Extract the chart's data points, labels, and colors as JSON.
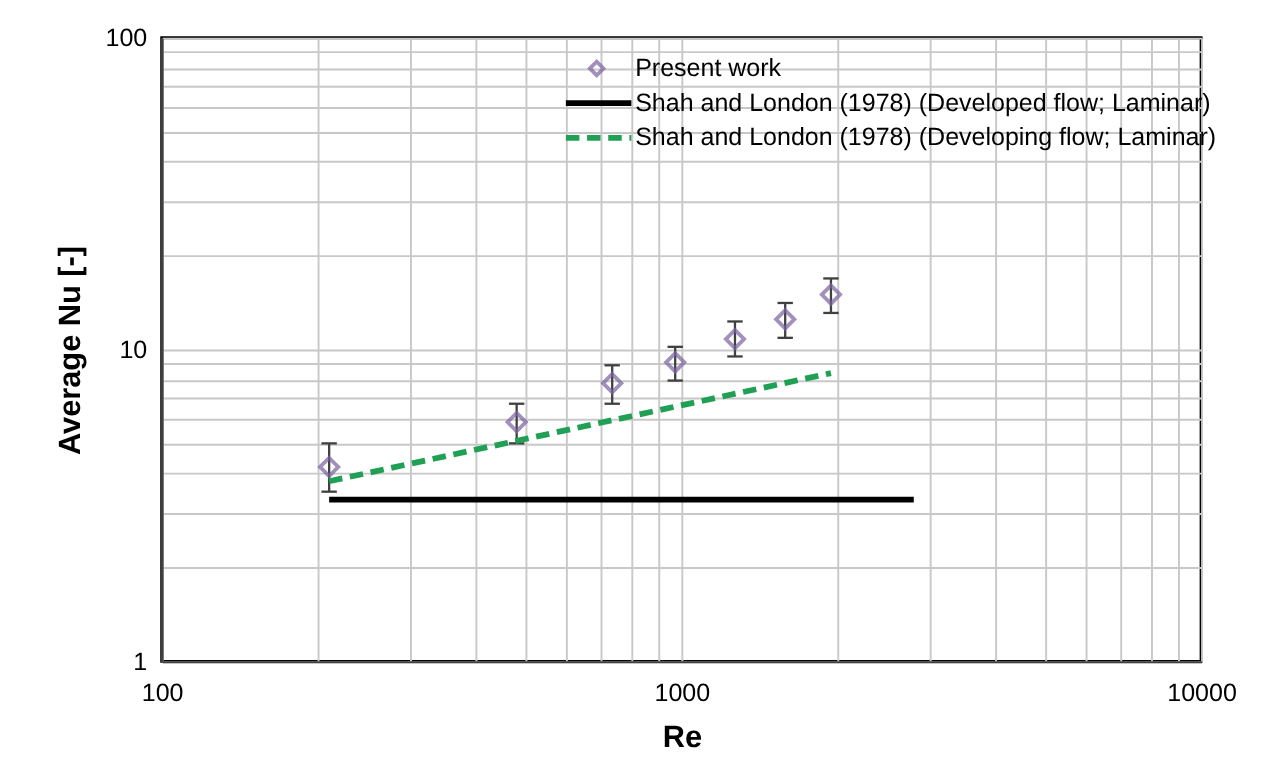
{
  "chart_data": {
    "type": "scatter",
    "xlabel": "Re",
    "ylabel": "Average Nu [-]",
    "log": "xy",
    "grid": true,
    "legend": "top right",
    "xlim": [
      100,
      10000
    ],
    "ylim": [
      1,
      100
    ],
    "xticks": [
      100,
      {
        "value": 200,
        "label": null
      },
      {
        "value": 300,
        "label": null
      },
      {
        "value": 400,
        "label": null
      },
      {
        "value": 500,
        "label": null
      },
      {
        "value": 600,
        "label": null
      },
      {
        "value": 700,
        "label": null
      },
      {
        "value": 800,
        "label": null
      },
      {
        "value": 900,
        "label": null
      },
      1000,
      {
        "value": 2000,
        "label": null
      },
      {
        "value": 3000,
        "label": null
      },
      {
        "value": 4000,
        "label": null
      },
      {
        "value": 5000,
        "label": null
      },
      {
        "value": 6000,
        "label": null
      },
      {
        "value": 7000,
        "label": null
      },
      {
        "value": 8000,
        "label": null
      },
      {
        "value": 9000,
        "label": null
      },
      10000
    ],
    "yticks": [
      1,
      {
        "value": 2,
        "label": null
      },
      {
        "value": 3,
        "label": null
      },
      {
        "value": 4,
        "label": null
      },
      {
        "value": 5,
        "label": null
      },
      {
        "value": 6,
        "label": null
      },
      {
        "value": 7,
        "label": null
      },
      {
        "value": 8,
        "label": null
      },
      {
        "value": 9,
        "label": null
      },
      10,
      {
        "value": 20,
        "label": null
      },
      {
        "value": 30,
        "label": null
      },
      {
        "value": 40,
        "label": null
      },
      {
        "value": 50,
        "label": null
      },
      {
        "value": 60,
        "label": null
      },
      {
        "value": 70,
        "label": null
      },
      {
        "value": 80,
        "label": null
      },
      {
        "value": 90,
        "label": null
      },
      100
    ],
    "series": [
      {
        "name": "Present work",
        "type": "scatter",
        "marker": "diamond",
        "color": "#7a62a0",
        "x": [
          210,
          482,
          736,
          973,
          1268,
          1584,
          1940
        ],
        "values": [
          4.2,
          5.85,
          7.8,
          9.1,
          10.8,
          12.5,
          15.0
        ],
        "errors": [
          [
            3.5,
            5.0
          ],
          [
            5.0,
            6.7
          ],
          [
            6.7,
            8.9
          ],
          [
            7.95,
            10.2
          ],
          [
            9.5,
            12.3
          ],
          [
            10.9,
            14.1
          ],
          [
            13.1,
            16.9
          ]
        ]
      },
      {
        "name": "Shah and London (1978) (Developed flow; Laminar)",
        "type": "line",
        "line_style": "solid",
        "color": "#000000",
        "x": [
          210,
          2800
        ],
        "values": [
          3.3,
          3.3
        ]
      },
      {
        "name": "Shah and London (1978) (Developing flow; Laminar)",
        "type": "line",
        "line_style": "dashed",
        "color": "#1fa055",
        "x": [
          210,
          1940
        ],
        "values": [
          3.78,
          8.4
        ]
      }
    ]
  }
}
